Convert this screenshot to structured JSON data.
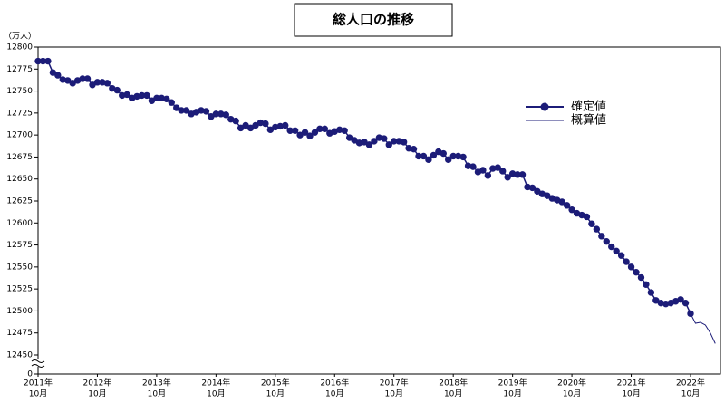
{
  "chart_data": {
    "type": "line",
    "title": "総人口の推移",
    "y_unit_label": "（万人）",
    "categories": [
      [
        "2011年",
        "10月"
      ],
      null,
      null,
      null,
      null,
      null,
      null,
      null,
      null,
      null,
      null,
      null,
      [
        "2012年",
        "10月"
      ],
      null,
      null,
      null,
      null,
      null,
      null,
      null,
      null,
      null,
      null,
      null,
      [
        "2013年",
        "10月"
      ],
      null,
      null,
      null,
      null,
      null,
      null,
      null,
      null,
      null,
      null,
      null,
      [
        "2014年",
        "10月"
      ],
      null,
      null,
      null,
      null,
      null,
      null,
      null,
      null,
      null,
      null,
      null,
      [
        "2015年",
        "10月"
      ],
      null,
      null,
      null,
      null,
      null,
      null,
      null,
      null,
      null,
      null,
      null,
      [
        "2016年",
        "10月"
      ],
      null,
      null,
      null,
      null,
      null,
      null,
      null,
      null,
      null,
      null,
      null,
      [
        "2017年",
        "10月"
      ],
      null,
      null,
      null,
      null,
      null,
      null,
      null,
      null,
      null,
      null,
      null,
      [
        "2018年",
        "10月"
      ],
      null,
      null,
      null,
      null,
      null,
      null,
      null,
      null,
      null,
      null,
      null,
      [
        "2019年",
        "10月"
      ],
      null,
      null,
      null,
      null,
      null,
      null,
      null,
      null,
      null,
      null,
      null,
      [
        "2020年",
        "10月"
      ],
      null,
      null,
      null,
      null,
      null,
      null,
      null,
      null,
      null,
      null,
      null,
      [
        "2021年",
        "10月"
      ],
      null,
      null,
      null,
      null,
      null,
      null,
      null,
      null,
      null,
      null,
      null,
      [
        "2022年",
        "10月"
      ],
      null,
      null,
      null,
      null,
      null
    ],
    "series": [
      {
        "name": "確定値",
        "color": "#1c1c78",
        "markers": true,
        "values": [
          12784,
          12784,
          12784,
          12771,
          12768,
          12763,
          12762,
          12759,
          12762,
          12764,
          12764,
          12757,
          12760,
          12760,
          12759,
          12753,
          12751,
          12745,
          12746,
          12742,
          12744,
          12745,
          12745,
          12739,
          12742,
          12742,
          12741,
          12737,
          12731,
          12728,
          12728,
          12724,
          12726,
          12728,
          12727,
          12721,
          12724,
          12724,
          12723,
          12718,
          12716,
          12708,
          12711,
          12708,
          12711,
          12714,
          12713,
          12706,
          12709,
          12710,
          12711,
          12705,
          12705,
          12700,
          12703,
          12699,
          12703,
          12707,
          12707,
          12702,
          12704,
          12706,
          12705,
          12697,
          12694,
          12691,
          12692,
          12689,
          12693,
          12697,
          12696,
          12689,
          12693,
          12693,
          12692,
          12685,
          12684,
          12676,
          12676,
          12672,
          12677,
          12681,
          12679,
          12672,
          12676,
          12676,
          12675,
          12665,
          12664,
          12658,
          12660,
          12654,
          12662,
          12663,
          12659,
          12652,
          12656,
          12655,
          12655,
          12641,
          12640,
          12636,
          12633,
          12631,
          12628,
          12626,
          12624,
          12620,
          12615,
          12611,
          12609,
          12607,
          12599,
          12593,
          12585,
          12579,
          12573,
          12568,
          12563,
          12556,
          12550,
          12544,
          12538,
          12530,
          12521,
          12512,
          12509,
          12508,
          12509,
          12511,
          12513,
          12509,
          12497,
          null,
          null,
          null,
          null,
          null
        ]
      },
      {
        "name": "概算値",
        "color": "#1c1c78",
        "markers": false,
        "values": [
          null,
          null,
          null,
          null,
          null,
          null,
          null,
          null,
          null,
          null,
          null,
          null,
          null,
          null,
          null,
          null,
          null,
          null,
          null,
          null,
          null,
          null,
          null,
          null,
          null,
          null,
          null,
          null,
          null,
          null,
          null,
          null,
          null,
          null,
          null,
          null,
          null,
          null,
          null,
          null,
          null,
          null,
          null,
          null,
          null,
          null,
          null,
          null,
          null,
          null,
          null,
          null,
          null,
          null,
          null,
          null,
          null,
          null,
          null,
          null,
          null,
          null,
          null,
          null,
          null,
          null,
          null,
          null,
          null,
          null,
          null,
          null,
          null,
          null,
          null,
          null,
          null,
          null,
          null,
          null,
          null,
          null,
          null,
          null,
          null,
          null,
          null,
          null,
          null,
          null,
          null,
          null,
          null,
          null,
          null,
          null,
          null,
          null,
          null,
          null,
          null,
          null,
          null,
          null,
          null,
          null,
          null,
          null,
          null,
          null,
          null,
          null,
          null,
          null,
          null,
          null,
          null,
          null,
          null,
          null,
          null,
          null,
          null,
          null,
          null,
          null,
          null,
          null,
          null,
          null,
          null,
          null,
          12497,
          12486,
          12487,
          12484,
          12475,
          12463
        ]
      }
    ],
    "ylim": [
      12450,
      12800
    ],
    "yticks": [
      12450,
      12475,
      12500,
      12525,
      12550,
      12575,
      12600,
      12625,
      12650,
      12675,
      12700,
      12725,
      12750,
      12775,
      12800
    ],
    "ybreak_tick": 0,
    "grid": false
  }
}
